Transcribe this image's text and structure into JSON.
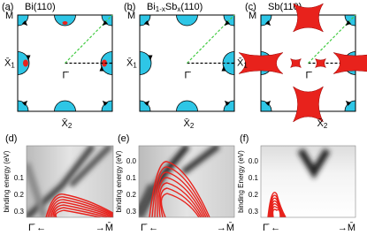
{
  "top_panels": [
    {
      "label": "(a)",
      "title": [
        "Bi(110)"
      ],
      "m": "M̄",
      "x1": {
        "main": "X̄",
        "sub": "1"
      },
      "g": "Γ̄",
      "x2": {
        "main": "X̄",
        "sub": "2"
      }
    },
    {
      "label": "(b)",
      "title": [
        "Bi",
        "1-x",
        "Sb",
        "x",
        "(110)"
      ],
      "m": "M̄",
      "x1": {
        "main": "X̄",
        "sub": "1"
      },
      "g": "Γ̄",
      "x2": {
        "main": "X̄",
        "sub": "2"
      }
    },
    {
      "label": "(c)",
      "title": [
        "Sb(110)"
      ],
      "m": "M̄",
      "x1": {
        "main": "X̄",
        "sub": "1"
      },
      "g": "Γ̄",
      "x2": {
        "main": "X̄",
        "sub": "2"
      }
    }
  ],
  "bottom_panels": [
    {
      "label": "(d)",
      "ylabel": "binding energy (eV)",
      "yticks": [
        "0.1",
        "0.2",
        "0.3"
      ],
      "xleft": "Γ̄ ←",
      "xright": "→M̄"
    },
    {
      "label": "(e)",
      "ylabel": "binding energy (eV)",
      "yticks": [
        "0.0",
        "0.1",
        "0.2",
        "0.3"
      ],
      "xleft": "Γ̄ ←",
      "xright": "→M̄"
    },
    {
      "label": "(f)",
      "ylabel": "binding Energy (eV)",
      "yticks": [
        "0.0",
        "0.1",
        "0.2",
        "0.3"
      ],
      "xleft": "Γ̄ ←",
      "xright": "→M̄"
    }
  ]
}
